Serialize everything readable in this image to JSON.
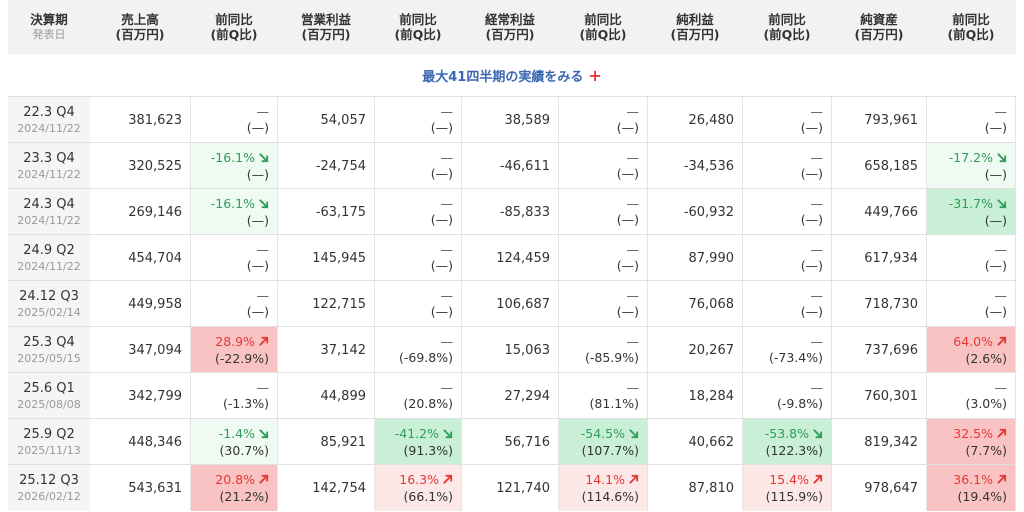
{
  "header": {
    "period": {
      "line1": "決算期",
      "sub": "発表日"
    },
    "sales": {
      "line1": "売上高",
      "line2": "(百万円)"
    },
    "sales_chg": {
      "line1": "前同比",
      "line2": "(前Q比)"
    },
    "op": {
      "line1": "営業利益",
      "line2": "(百万円)"
    },
    "op_chg": {
      "line1": "前同比",
      "line2": "(前Q比)"
    },
    "ord": {
      "line1": "経常利益",
      "line2": "(百万円)"
    },
    "ord_chg": {
      "line1": "前同比",
      "line2": "(前Q比)"
    },
    "net": {
      "line1": "純利益",
      "line2": "(百万円)"
    },
    "net_chg": {
      "line1": "前同比",
      "line2": "(前Q比)"
    },
    "assets": {
      "line1": "純資産",
      "line2": "(百万円)"
    },
    "assets_chg": {
      "line1": "前同比",
      "line2": "(前Q比)"
    }
  },
  "more_link": {
    "label": "最大41四半期の実績をみる",
    "icon": "plus-icon",
    "symbol": "+"
  },
  "colors": {
    "up": "#e53935",
    "down": "#2e9e58",
    "up_strong_bg": "#f9c3c3",
    "up_light_bg": "#fde8e8",
    "down_strong_bg": "#c9efd6",
    "down_light_bg": "#effaf2",
    "link": "#3a66b0"
  },
  "rows": [
    {
      "period": "22.3 Q4",
      "date": "2024/11/22",
      "sales": "381,623",
      "sales_chg": {
        "yoy": "—",
        "qoq": "(—)",
        "dir": "none",
        "bg": ""
      },
      "op": "54,057",
      "op_chg": {
        "yoy": "—",
        "qoq": "(—)",
        "dir": "none",
        "bg": ""
      },
      "ord": "38,589",
      "ord_chg": {
        "yoy": "—",
        "qoq": "(—)",
        "dir": "none",
        "bg": ""
      },
      "net": "26,480",
      "net_chg": {
        "yoy": "—",
        "qoq": "(—)",
        "dir": "none",
        "bg": ""
      },
      "assets": "793,961",
      "assets_chg": {
        "yoy": "—",
        "qoq": "(—)",
        "dir": "none",
        "bg": ""
      }
    },
    {
      "period": "23.3 Q4",
      "date": "2024/11/22",
      "sales": "320,525",
      "sales_chg": {
        "yoy": "-16.1%",
        "qoq": "(—)",
        "dir": "down",
        "bg": "g1"
      },
      "op": "-24,754",
      "op_chg": {
        "yoy": "—",
        "qoq": "(—)",
        "dir": "none",
        "bg": ""
      },
      "ord": "-46,611",
      "ord_chg": {
        "yoy": "—",
        "qoq": "(—)",
        "dir": "none",
        "bg": ""
      },
      "net": "-34,536",
      "net_chg": {
        "yoy": "—",
        "qoq": "(—)",
        "dir": "none",
        "bg": ""
      },
      "assets": "658,185",
      "assets_chg": {
        "yoy": "-17.2%",
        "qoq": "(—)",
        "dir": "down",
        "bg": "g1"
      }
    },
    {
      "period": "24.3 Q4",
      "date": "2024/11/22",
      "sales": "269,146",
      "sales_chg": {
        "yoy": "-16.1%",
        "qoq": "(—)",
        "dir": "down",
        "bg": "g1"
      },
      "op": "-63,175",
      "op_chg": {
        "yoy": "—",
        "qoq": "(—)",
        "dir": "none",
        "bg": ""
      },
      "ord": "-85,833",
      "ord_chg": {
        "yoy": "—",
        "qoq": "(—)",
        "dir": "none",
        "bg": ""
      },
      "net": "-60,932",
      "net_chg": {
        "yoy": "—",
        "qoq": "(—)",
        "dir": "none",
        "bg": ""
      },
      "assets": "449,766",
      "assets_chg": {
        "yoy": "-31.7%",
        "qoq": "(—)",
        "dir": "down",
        "bg": "g2"
      }
    },
    {
      "period": "24.9 Q2",
      "date": "2024/11/22",
      "sales": "454,704",
      "sales_chg": {
        "yoy": "—",
        "qoq": "(—)",
        "dir": "none",
        "bg": ""
      },
      "op": "145,945",
      "op_chg": {
        "yoy": "—",
        "qoq": "(—)",
        "dir": "none",
        "bg": ""
      },
      "ord": "124,459",
      "ord_chg": {
        "yoy": "—",
        "qoq": "(—)",
        "dir": "none",
        "bg": ""
      },
      "net": "87,990",
      "net_chg": {
        "yoy": "—",
        "qoq": "(—)",
        "dir": "none",
        "bg": ""
      },
      "assets": "617,934",
      "assets_chg": {
        "yoy": "—",
        "qoq": "(—)",
        "dir": "none",
        "bg": ""
      }
    },
    {
      "period": "24.12 Q3",
      "date": "2025/02/14",
      "sales": "449,958",
      "sales_chg": {
        "yoy": "—",
        "qoq": "(—)",
        "dir": "none",
        "bg": ""
      },
      "op": "122,715",
      "op_chg": {
        "yoy": "—",
        "qoq": "(—)",
        "dir": "none",
        "bg": ""
      },
      "ord": "106,687",
      "ord_chg": {
        "yoy": "—",
        "qoq": "(—)",
        "dir": "none",
        "bg": ""
      },
      "net": "76,068",
      "net_chg": {
        "yoy": "—",
        "qoq": "(—)",
        "dir": "none",
        "bg": ""
      },
      "assets": "718,730",
      "assets_chg": {
        "yoy": "—",
        "qoq": "(—)",
        "dir": "none",
        "bg": ""
      }
    },
    {
      "period": "25.3 Q4",
      "date": "2025/05/15",
      "sales": "347,094",
      "sales_chg": {
        "yoy": "28.9%",
        "qoq": "(-22.9%)",
        "dir": "up",
        "bg": "r2"
      },
      "op": "37,142",
      "op_chg": {
        "yoy": "—",
        "qoq": "(-69.8%)",
        "dir": "none",
        "bg": ""
      },
      "ord": "15,063",
      "ord_chg": {
        "yoy": "—",
        "qoq": "(-85.9%)",
        "dir": "none",
        "bg": ""
      },
      "net": "20,267",
      "net_chg": {
        "yoy": "—",
        "qoq": "(-73.4%)",
        "dir": "none",
        "bg": ""
      },
      "assets": "737,696",
      "assets_chg": {
        "yoy": "64.0%",
        "qoq": "(2.6%)",
        "dir": "up",
        "bg": "r2"
      }
    },
    {
      "period": "25.6 Q1",
      "date": "2025/08/08",
      "sales": "342,799",
      "sales_chg": {
        "yoy": "—",
        "qoq": "(-1.3%)",
        "dir": "none",
        "bg": ""
      },
      "op": "44,899",
      "op_chg": {
        "yoy": "—",
        "qoq": "(20.8%)",
        "dir": "none",
        "bg": ""
      },
      "ord": "27,294",
      "ord_chg": {
        "yoy": "—",
        "qoq": "(81.1%)",
        "dir": "none",
        "bg": ""
      },
      "net": "18,284",
      "net_chg": {
        "yoy": "—",
        "qoq": "(-9.8%)",
        "dir": "none",
        "bg": ""
      },
      "assets": "760,301",
      "assets_chg": {
        "yoy": "—",
        "qoq": "(3.0%)",
        "dir": "none",
        "bg": ""
      }
    },
    {
      "period": "25.9 Q2",
      "date": "2025/11/13",
      "sales": "448,346",
      "sales_chg": {
        "yoy": "-1.4%",
        "qoq": "(30.7%)",
        "dir": "down",
        "bg": "g1"
      },
      "op": "85,921",
      "op_chg": {
        "yoy": "-41.2%",
        "qoq": "(91.3%)",
        "dir": "down",
        "bg": "g2"
      },
      "ord": "56,716",
      "ord_chg": {
        "yoy": "-54.5%",
        "qoq": "(107.7%)",
        "dir": "down",
        "bg": "g2"
      },
      "net": "40,662",
      "net_chg": {
        "yoy": "-53.8%",
        "qoq": "(122.3%)",
        "dir": "down",
        "bg": "g2"
      },
      "assets": "819,342",
      "assets_chg": {
        "yoy": "32.5%",
        "qoq": "(7.7%)",
        "dir": "up",
        "bg": "r2"
      }
    },
    {
      "period": "25.12 Q3",
      "date": "2026/02/12",
      "sales": "543,631",
      "sales_chg": {
        "yoy": "20.8%",
        "qoq": "(21.2%)",
        "dir": "up",
        "bg": "r2"
      },
      "op": "142,754",
      "op_chg": {
        "yoy": "16.3%",
        "qoq": "(66.1%)",
        "dir": "up",
        "bg": "r1"
      },
      "ord": "121,740",
      "ord_chg": {
        "yoy": "14.1%",
        "qoq": "(114.6%)",
        "dir": "up",
        "bg": "r1"
      },
      "net": "87,810",
      "net_chg": {
        "yoy": "15.4%",
        "qoq": "(115.9%)",
        "dir": "up",
        "bg": "r1"
      },
      "assets": "978,647",
      "assets_chg": {
        "yoy": "36.1%",
        "qoq": "(19.4%)",
        "dir": "up",
        "bg": "r2"
      }
    }
  ]
}
